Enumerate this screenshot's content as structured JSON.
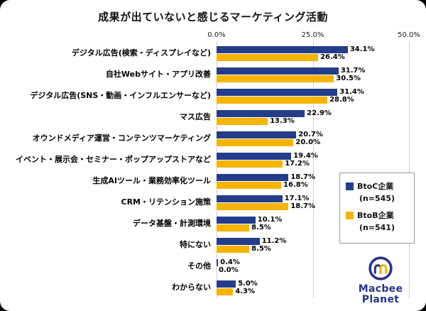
{
  "title": "成果が出ていないと感じるマーケティング活動",
  "chart_data": {
    "type": "bar",
    "orientation": "horizontal",
    "title": "成果が出ていないと感じるマーケティング活動",
    "xlim": [
      0,
      50
    ],
    "x_tick_labels": [
      "0.0%",
      "25.0%",
      "50.0%"
    ],
    "grid": true,
    "legend_position": "right-overlay",
    "categories": [
      "デジタル広告(検索・ディスプレイなど)",
      "自社Webサイト・アプリ改善",
      "デジタル広告(SNS・動画・インフルエンサーなど)",
      "マス広告",
      "オウンドメディア運営・コンテンツマーケティング",
      "イベント・展示会・セミナー・ポップアップストアなど",
      "生成AIツール・業務効率化ツール",
      "CRM・リテンション施策",
      "データ基盤・計測環境",
      "特にない",
      "その他",
      "わからない"
    ],
    "series": [
      {
        "key": "btoc",
        "name": "BtoC企業",
        "n_label": "(n=545)",
        "color": "#233d8b",
        "values": [
          34.1,
          31.7,
          31.4,
          22.9,
          20.7,
          19.4,
          18.7,
          17.1,
          10.1,
          11.2,
          0.4,
          5.0
        ]
      },
      {
        "key": "btob",
        "name": "BtoB企業",
        "n_label": "(n=541)",
        "color": "#f6b400",
        "values": [
          26.4,
          30.5,
          28.8,
          13.3,
          20.0,
          17.2,
          16.8,
          18.7,
          8.5,
          8.5,
          0.0,
          4.3
        ]
      }
    ]
  },
  "logo": {
    "line1": "Macbee",
    "line2": "Planet"
  },
  "colors": {
    "navy": "#233d8b",
    "yellow": "#f6b400",
    "gridline": "#cfcfcf"
  }
}
